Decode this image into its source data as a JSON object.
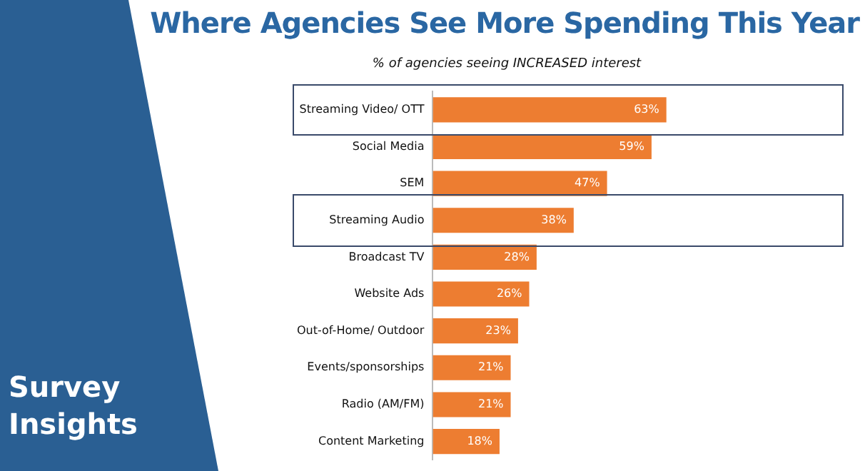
{
  "chart_data": {
    "type": "bar",
    "orientation": "horizontal",
    "title": "Where Agencies See More Spending This Year",
    "subtitle": "% of agencies seeing INCREASED interest",
    "categories": [
      "Streaming Video/ OTT",
      "Social Media",
      "SEM",
      "Streaming Audio",
      "Broadcast TV",
      "Website Ads",
      "Out-of-Home/ Outdoor",
      "Events/sponsorships",
      "Radio (AM/FM)",
      "Content Marketing"
    ],
    "values": [
      63,
      59,
      47,
      38,
      28,
      26,
      23,
      21,
      21,
      18
    ],
    "value_labels": [
      "63%",
      "59%",
      "47%",
      "38%",
      "28%",
      "26%",
      "23%",
      "21%",
      "21%",
      "18%"
    ],
    "color": "#ed7d31",
    "grid": false,
    "legend": false,
    "tick_labels": "y",
    "annotations": [
      "Survey Insights"
    ]
  }
}
